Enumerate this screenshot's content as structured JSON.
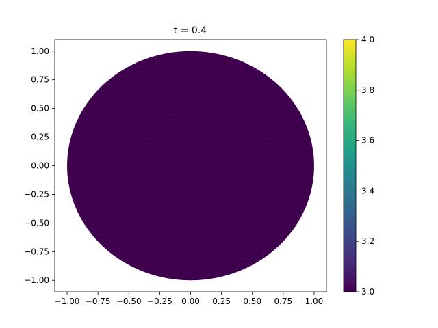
{
  "chart_data": {
    "type": "heatmap",
    "title": "t = 0.4",
    "xlabel": "",
    "ylabel": "",
    "xlim": [
      -1.1,
      1.1
    ],
    "ylim": [
      -1.1,
      1.1
    ],
    "x_ticks": [
      -1.0,
      -0.75,
      -0.5,
      -0.25,
      0.0,
      0.25,
      0.5,
      0.75,
      1.0
    ],
    "x_tick_labels": [
      "−1.00",
      "−0.75",
      "−0.50",
      "−0.25",
      "0.00",
      "0.25",
      "0.50",
      "0.75",
      "1.00"
    ],
    "y_ticks": [
      1.0,
      0.75,
      0.5,
      0.25,
      0.0,
      -0.25,
      -0.5,
      -0.75,
      -1.0
    ],
    "y_tick_labels": [
      "1.00",
      "0.75",
      "0.50",
      "0.25",
      "0.00",
      "−0.25",
      "−0.50",
      "−0.75",
      "−1.00"
    ],
    "domain": {
      "shape": "disk",
      "center": [
        0.0,
        0.0
      ],
      "radius": 1.0
    },
    "field_value": 3.0,
    "field_color": "#440154",
    "mesh_edge_color": "#1a0422",
    "grid": false,
    "colorbar": {
      "colormap": "viridis",
      "range": [
        3.0,
        4.0
      ],
      "ticks": [
        3.0,
        3.2,
        3.4,
        3.6,
        3.8,
        4.0
      ],
      "tick_labels": [
        "3.0",
        "3.2",
        "3.4",
        "3.6",
        "3.8",
        "4.0"
      ],
      "stops": [
        "#440154",
        "#482878",
        "#3e4989",
        "#31688e",
        "#26828e",
        "#1f9e89",
        "#35b779",
        "#6ece58",
        "#b5de2b",
        "#fde725"
      ]
    }
  }
}
